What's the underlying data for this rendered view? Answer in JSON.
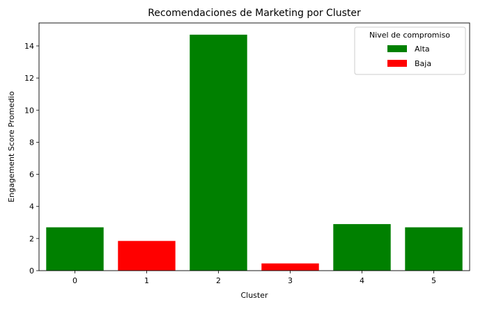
{
  "chart_data": {
    "type": "bar",
    "title": "Recomendaciones de Marketing por Cluster",
    "xlabel": "Cluster",
    "ylabel": "Engagement Score Promedio",
    "categories": [
      "0",
      "1",
      "2",
      "3",
      "4",
      "5"
    ],
    "values": [
      2.7,
      1.85,
      14.7,
      0.45,
      2.9,
      2.7
    ],
    "groups": [
      "Alta",
      "Baja",
      "Alta",
      "Baja",
      "Alta",
      "Alta"
    ],
    "ylim": [
      0,
      15.43
    ],
    "yticks": [
      0,
      2,
      4,
      6,
      8,
      10,
      12,
      14
    ],
    "grid": false,
    "legend": {
      "title": "Nivel de compromiso",
      "placement": "top-right",
      "entries": [
        {
          "label": "Alta",
          "color": "#008000"
        },
        {
          "label": "Baja",
          "color": "#ff0000"
        }
      ]
    },
    "colors": {
      "Alta": "#008000",
      "Baja": "#ff0000"
    }
  }
}
